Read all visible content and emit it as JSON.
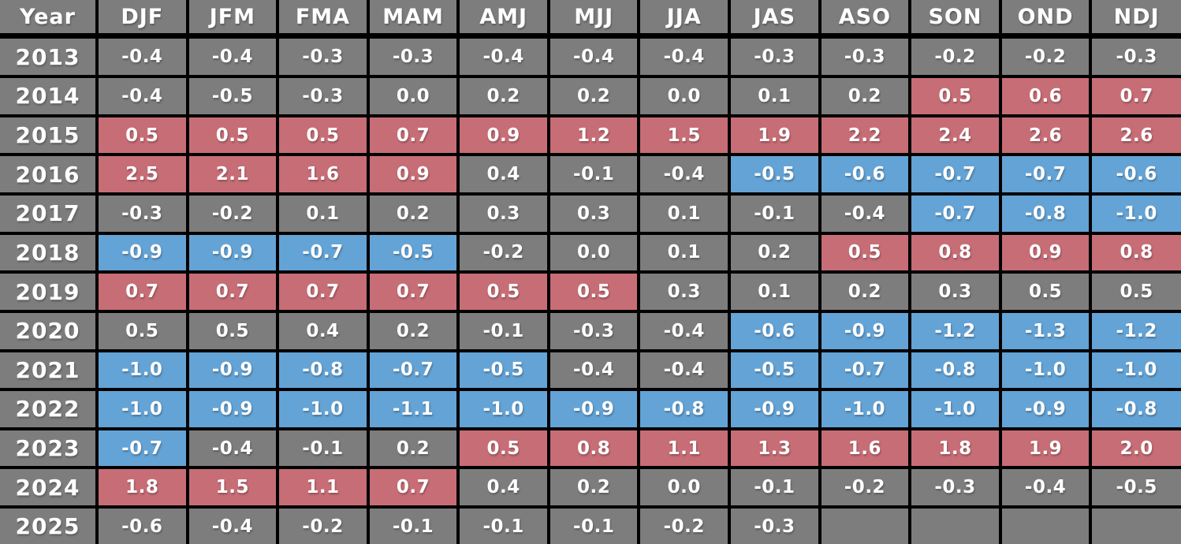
{
  "colors": {
    "neutral": "#7d7d7d",
    "warm": "#c76d76",
    "cold": "#64a3d5",
    "border": "#000000",
    "text": "#ffffff"
  },
  "table": {
    "columns": [
      "Year",
      "DJF",
      "JFM",
      "FMA",
      "MAM",
      "AMJ",
      "MJJ",
      "JJA",
      "JAS",
      "ASO",
      "SON",
      "OND",
      "NDJ"
    ],
    "rows": [
      {
        "year": "2013",
        "values": [
          "-0.4",
          "-0.4",
          "-0.3",
          "-0.3",
          "-0.4",
          "-0.4",
          "-0.4",
          "-0.3",
          "-0.3",
          "-0.2",
          "-0.2",
          "-0.3"
        ],
        "states": "nnnnnnnnnnnn"
      },
      {
        "year": "2014",
        "values": [
          "-0.4",
          "-0.5",
          "-0.3",
          "0.0",
          "0.2",
          "0.2",
          "0.0",
          "0.1",
          "0.2",
          "0.5",
          "0.6",
          "0.7"
        ],
        "states": "nnnnnnnnnwww"
      },
      {
        "year": "2015",
        "values": [
          "0.5",
          "0.5",
          "0.5",
          "0.7",
          "0.9",
          "1.2",
          "1.5",
          "1.9",
          "2.2",
          "2.4",
          "2.6",
          "2.6"
        ],
        "states": "wwwwwwwwwwww"
      },
      {
        "year": "2016",
        "values": [
          "2.5",
          "2.1",
          "1.6",
          "0.9",
          "0.4",
          "-0.1",
          "-0.4",
          "-0.5",
          "-0.6",
          "-0.7",
          "-0.7",
          "-0.6"
        ],
        "states": "wwwwnnnccccc"
      },
      {
        "year": "2017",
        "values": [
          "-0.3",
          "-0.2",
          "0.1",
          "0.2",
          "0.3",
          "0.3",
          "0.1",
          "-0.1",
          "-0.4",
          "-0.7",
          "-0.8",
          "-1.0"
        ],
        "states": "nnnnnnnnnccc"
      },
      {
        "year": "2018",
        "values": [
          "-0.9",
          "-0.9",
          "-0.7",
          "-0.5",
          "-0.2",
          "0.0",
          "0.1",
          "0.2",
          "0.5",
          "0.8",
          "0.9",
          "0.8"
        ],
        "states": "ccccnnnnwwww"
      },
      {
        "year": "2019",
        "values": [
          "0.7",
          "0.7",
          "0.7",
          "0.7",
          "0.5",
          "0.5",
          "0.3",
          "0.1",
          "0.2",
          "0.3",
          "0.5",
          "0.5"
        ],
        "states": "wwwwwwnnnnnn"
      },
      {
        "year": "2020",
        "values": [
          "0.5",
          "0.5",
          "0.4",
          "0.2",
          "-0.1",
          "-0.3",
          "-0.4",
          "-0.6",
          "-0.9",
          "-1.2",
          "-1.3",
          "-1.2"
        ],
        "states": "nnnnnnnccccc"
      },
      {
        "year": "2021",
        "values": [
          "-1.0",
          "-0.9",
          "-0.8",
          "-0.7",
          "-0.5",
          "-0.4",
          "-0.4",
          "-0.5",
          "-0.7",
          "-0.8",
          "-1.0",
          "-1.0"
        ],
        "states": "cccccnnccccc"
      },
      {
        "year": "2022",
        "values": [
          "-1.0",
          "-0.9",
          "-1.0",
          "-1.1",
          "-1.0",
          "-0.9",
          "-0.8",
          "-0.9",
          "-1.0",
          "-1.0",
          "-0.9",
          "-0.8"
        ],
        "states": "cccccccccccc"
      },
      {
        "year": "2023",
        "values": [
          "-0.7",
          "-0.4",
          "-0.1",
          "0.2",
          "0.5",
          "0.8",
          "1.1",
          "1.3",
          "1.6",
          "1.8",
          "1.9",
          "2.0"
        ],
        "states": "cnnnwwwwwwww"
      },
      {
        "year": "2024",
        "values": [
          "1.8",
          "1.5",
          "1.1",
          "0.7",
          "0.4",
          "0.2",
          "0.0",
          "-0.1",
          "-0.2",
          "-0.3",
          "-0.4",
          "-0.5"
        ],
        "states": "wwwwnnnnnnnn"
      },
      {
        "year": "2025",
        "values": [
          "-0.6",
          "-0.4",
          "-0.2",
          "-0.1",
          "-0.1",
          "-0.1",
          "-0.2",
          "-0.3",
          "",
          "",
          "",
          ""
        ],
        "states": "nnnnnnnnnnnn"
      }
    ]
  },
  "chart_data": {
    "type": "table",
    "columns": [
      "Year",
      "DJF",
      "JFM",
      "FMA",
      "MAM",
      "AMJ",
      "MJJ",
      "JJA",
      "JAS",
      "ASO",
      "SON",
      "OND",
      "NDJ"
    ],
    "rows": [
      {
        "year": 2013,
        "values": [
          -0.4,
          -0.4,
          -0.3,
          -0.3,
          -0.4,
          -0.4,
          -0.4,
          -0.3,
          -0.3,
          -0.2,
          -0.2,
          -0.3
        ]
      },
      {
        "year": 2014,
        "values": [
          -0.4,
          -0.5,
          -0.3,
          0.0,
          0.2,
          0.2,
          0.0,
          0.1,
          0.2,
          0.5,
          0.6,
          0.7
        ]
      },
      {
        "year": 2015,
        "values": [
          0.5,
          0.5,
          0.5,
          0.7,
          0.9,
          1.2,
          1.5,
          1.9,
          2.2,
          2.4,
          2.6,
          2.6
        ]
      },
      {
        "year": 2016,
        "values": [
          2.5,
          2.1,
          1.6,
          0.9,
          0.4,
          -0.1,
          -0.4,
          -0.5,
          -0.6,
          -0.7,
          -0.7,
          -0.6
        ]
      },
      {
        "year": 2017,
        "values": [
          -0.3,
          -0.2,
          0.1,
          0.2,
          0.3,
          0.3,
          0.1,
          -0.1,
          -0.4,
          -0.7,
          -0.8,
          -1.0
        ]
      },
      {
        "year": 2018,
        "values": [
          -0.9,
          -0.9,
          -0.7,
          -0.5,
          -0.2,
          0.0,
          0.1,
          0.2,
          0.5,
          0.8,
          0.9,
          0.8
        ]
      },
      {
        "year": 2019,
        "values": [
          0.7,
          0.7,
          0.7,
          0.7,
          0.5,
          0.5,
          0.3,
          0.1,
          0.2,
          0.3,
          0.5,
          0.5
        ]
      },
      {
        "year": 2020,
        "values": [
          0.5,
          0.5,
          0.4,
          0.2,
          -0.1,
          -0.3,
          -0.4,
          -0.6,
          -0.9,
          -1.2,
          -1.3,
          -1.2
        ]
      },
      {
        "year": 2021,
        "values": [
          -1.0,
          -0.9,
          -0.8,
          -0.7,
          -0.5,
          -0.4,
          -0.4,
          -0.5,
          -0.7,
          -0.8,
          -1.0,
          -1.0
        ]
      },
      {
        "year": 2022,
        "values": [
          -1.0,
          -0.9,
          -1.0,
          -1.1,
          -1.0,
          -0.9,
          -0.8,
          -0.9,
          -1.0,
          -1.0,
          -0.9,
          -0.8
        ]
      },
      {
        "year": 2023,
        "values": [
          -0.7,
          -0.4,
          -0.1,
          0.2,
          0.5,
          0.8,
          1.1,
          1.3,
          1.6,
          1.8,
          1.9,
          2.0
        ]
      },
      {
        "year": 2024,
        "values": [
          1.8,
          1.5,
          1.1,
          0.7,
          0.4,
          0.2,
          0.0,
          -0.1,
          -0.2,
          -0.3,
          -0.4,
          -0.5
        ]
      },
      {
        "year": 2025,
        "values": [
          -0.6,
          -0.4,
          -0.2,
          -0.1,
          -0.1,
          -0.1,
          -0.2,
          -0.3,
          null,
          null,
          null,
          null
        ]
      }
    ],
    "cell_state_legend": {
      "n": "neutral-gray",
      "w": "warm-red",
      "c": "cold-blue"
    },
    "layout": {
      "grid": true,
      "header_row": true,
      "first_column_is_year": true
    }
  }
}
